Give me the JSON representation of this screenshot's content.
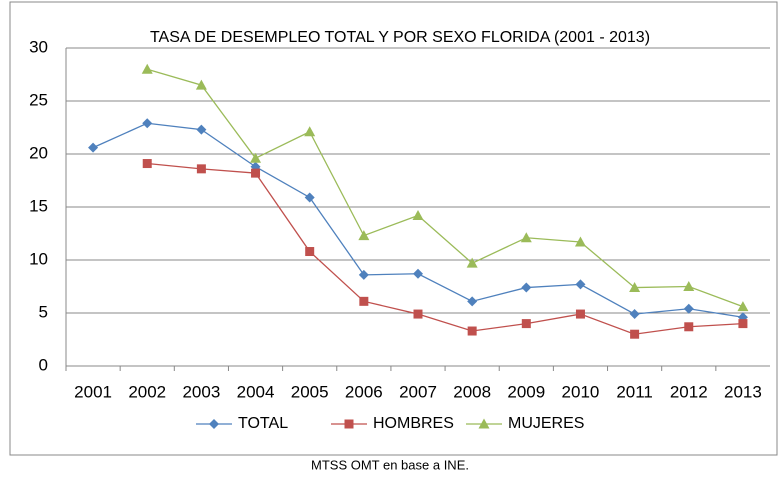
{
  "chart_data": {
    "type": "line",
    "title": "TASA DE DESEMPLEO TOTAL Y POR SEXO FLORIDA (2001 - 2013)",
    "categories": [
      "2001",
      "2002",
      "2003",
      "2004",
      "2005",
      "2006",
      "2007",
      "2008",
      "2009",
      "2010",
      "2011",
      "2012",
      "2013"
    ],
    "series": [
      {
        "name": "TOTAL",
        "color": "#4f81bd",
        "marker": "diamond",
        "values": [
          20.6,
          22.9,
          22.3,
          18.8,
          15.9,
          8.6,
          8.7,
          6.1,
          7.4,
          7.7,
          4.9,
          5.4,
          4.6
        ]
      },
      {
        "name": "HOMBRES",
        "color": "#c0504d",
        "marker": "square",
        "values": [
          null,
          19.1,
          18.6,
          18.2,
          10.8,
          6.1,
          4.9,
          3.3,
          4.0,
          4.9,
          3.0,
          3.7,
          4.0
        ]
      },
      {
        "name": "MUJERES",
        "color": "#9bbb59",
        "marker": "triangle",
        "values": [
          null,
          28.0,
          26.5,
          19.6,
          22.1,
          12.3,
          14.2,
          9.7,
          12.1,
          11.7,
          7.4,
          7.5,
          5.6
        ]
      }
    ],
    "ylim": [
      0,
      30
    ],
    "yticks": [
      0,
      5,
      10,
      15,
      20,
      25,
      30
    ],
    "grid": true,
    "legend": "bottom",
    "source": "MTSS  OMT  en base a INE."
  }
}
